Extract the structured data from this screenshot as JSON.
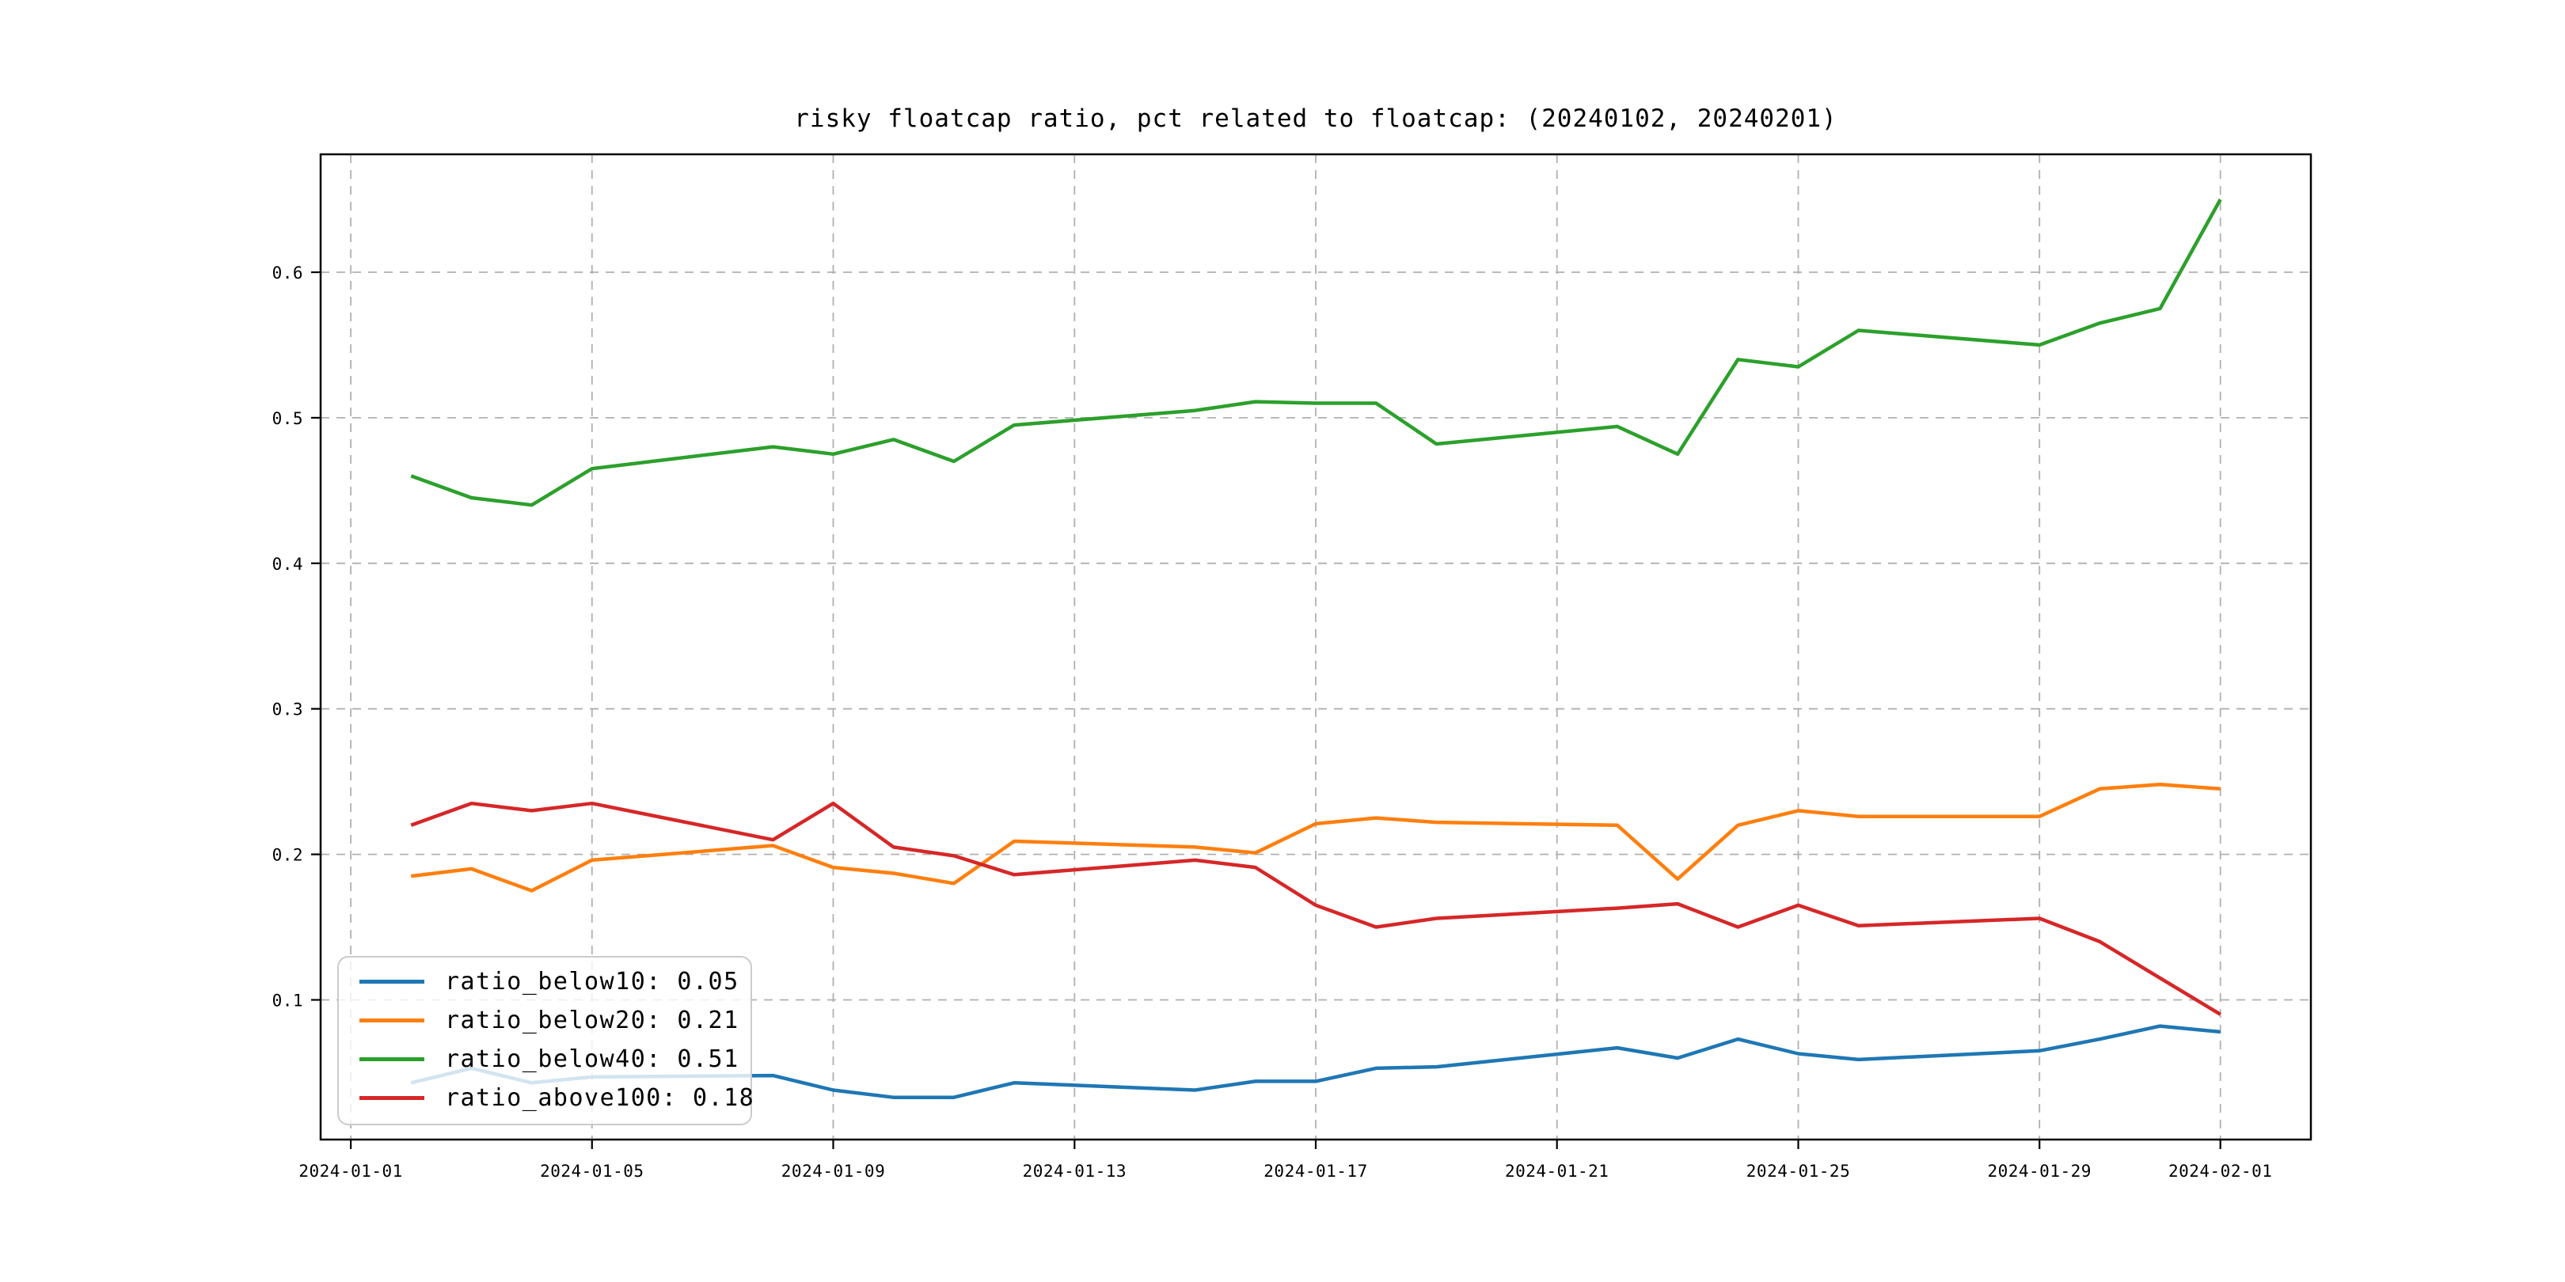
{
  "chart_data": {
    "type": "line",
    "title": "risky floatcap ratio, pct related to floatcap: (20240102, 20240201)",
    "grid": true,
    "legend_position": "lower left",
    "background_color": "#ffffff",
    "line_width": 4.5,
    "xlim_days": [
      -0.5,
      32.5
    ],
    "ylim": [
      0.004,
      0.681
    ],
    "x_tick_labels": [
      "2024-01-01",
      "2024-01-05",
      "2024-01-09",
      "2024-01-13",
      "2024-01-17",
      "2024-01-21",
      "2024-01-25",
      "2024-01-29",
      "2024-02-01"
    ],
    "y_tick_labels": [
      "0.1",
      "0.2",
      "0.3",
      "0.4",
      "0.5",
      "0.6"
    ],
    "x": [
      "2024-01-02",
      "2024-01-03",
      "2024-01-04",
      "2024-01-05",
      "2024-01-08",
      "2024-01-09",
      "2024-01-10",
      "2024-01-11",
      "2024-01-12",
      "2024-01-15",
      "2024-01-16",
      "2024-01-17",
      "2024-01-18",
      "2024-01-19",
      "2024-01-22",
      "2024-01-23",
      "2024-01-24",
      "2024-01-25",
      "2024-01-26",
      "2024-01-29",
      "2024-01-30",
      "2024-01-31",
      "2024-02-01"
    ],
    "series": [
      {
        "name": "ratio_below10",
        "legend_label": "ratio_below10: 0.05",
        "color": "#1f77b4",
        "values": [
          0.043,
          0.053,
          0.043,
          0.047,
          0.048,
          0.038,
          0.033,
          0.033,
          0.043,
          0.038,
          0.044,
          0.044,
          0.053,
          0.054,
          0.067,
          0.06,
          0.073,
          0.063,
          0.059,
          0.065,
          0.073,
          0.082,
          0.078
        ]
      },
      {
        "name": "ratio_below20",
        "legend_label": "ratio_below20: 0.21",
        "color": "#ff7f0e",
        "values": [
          0.185,
          0.19,
          0.175,
          0.196,
          0.206,
          0.191,
          0.187,
          0.18,
          0.209,
          0.205,
          0.201,
          0.221,
          0.225,
          0.222,
          0.22,
          0.183,
          0.22,
          0.23,
          0.226,
          0.226,
          0.245,
          0.248,
          0.245
        ]
      },
      {
        "name": "ratio_below40",
        "legend_label": "ratio_below40: 0.51",
        "color": "#2ca02c",
        "values": [
          0.46,
          0.445,
          0.44,
          0.465,
          0.48,
          0.475,
          0.485,
          0.47,
          0.495,
          0.505,
          0.511,
          0.51,
          0.51,
          0.482,
          0.494,
          0.475,
          0.54,
          0.535,
          0.56,
          0.55,
          0.565,
          0.575,
          0.65
        ]
      },
      {
        "name": "ratio_above100",
        "legend_label": "ratio_above100: 0.18",
        "color": "#d62728",
        "values": [
          0.22,
          0.235,
          0.23,
          0.235,
          0.21,
          0.235,
          0.205,
          0.199,
          0.186,
          0.196,
          0.191,
          0.165,
          0.15,
          0.156,
          0.163,
          0.166,
          0.15,
          0.165,
          0.151,
          0.156,
          0.14,
          0.115,
          0.09
        ]
      }
    ]
  }
}
